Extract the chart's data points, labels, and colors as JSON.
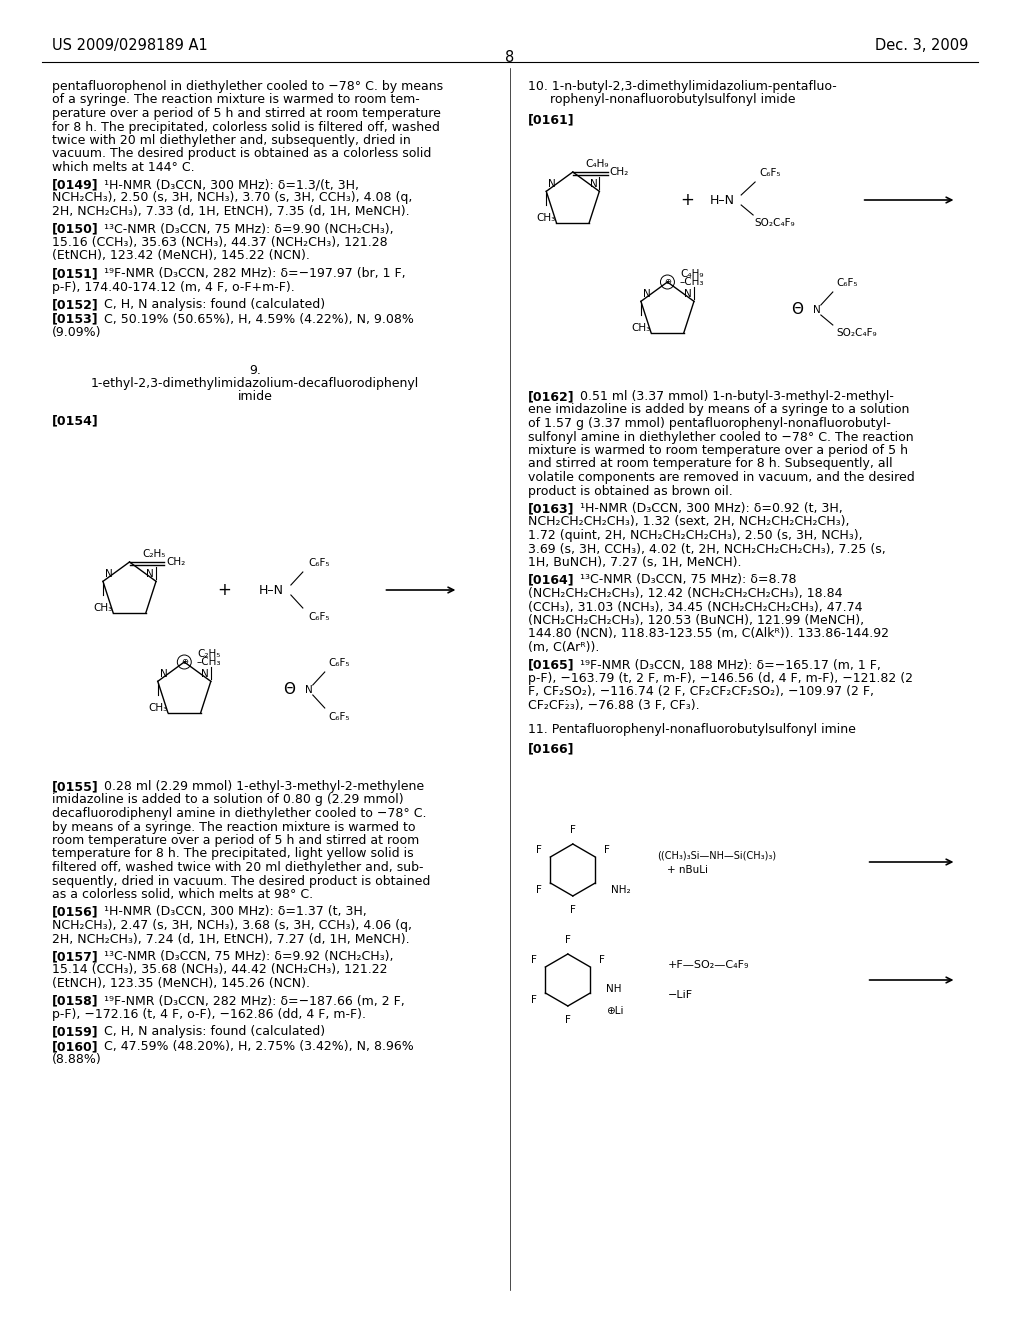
{
  "page_header_left": "US 2009/0298189 A1",
  "page_header_right": "Dec. 3, 2009",
  "page_number": "8",
  "background": "#ffffff",
  "text_color": "#000000"
}
